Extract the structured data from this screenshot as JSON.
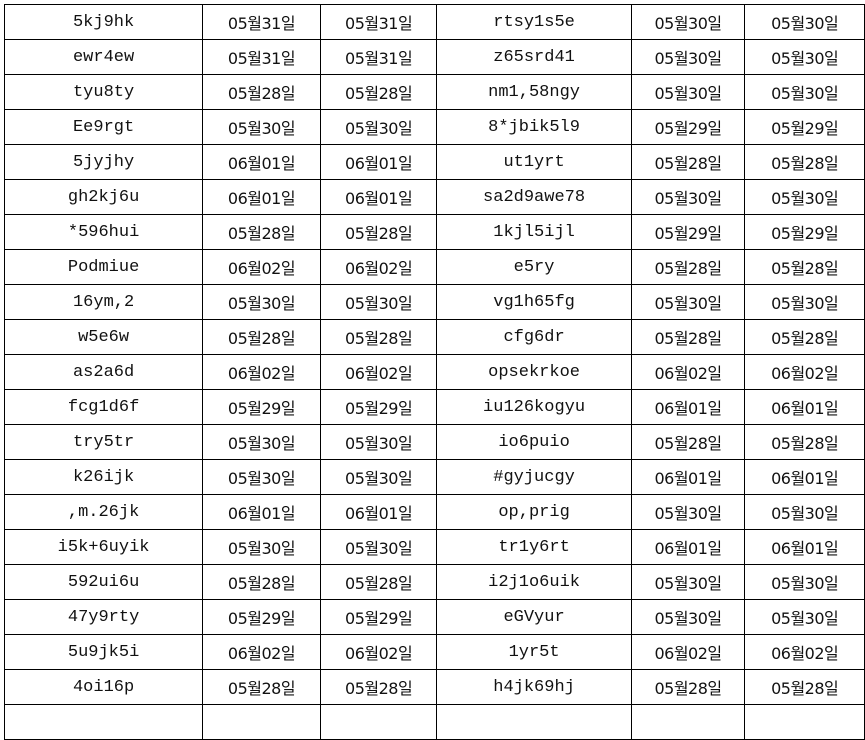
{
  "rows": [
    [
      "5kj9hk",
      "05월31일",
      "05월31일",
      "rtsy1s5e",
      "05월30일",
      "05월30일"
    ],
    [
      "ewr4ew",
      "05월31일",
      "05월31일",
      "z65srd41",
      "05월30일",
      "05월30일"
    ],
    [
      "tyu8ty",
      "05월28일",
      "05월28일",
      "nm1,58ngy",
      "05월30일",
      "05월30일"
    ],
    [
      "Ee9rgt",
      "05월30일",
      "05월30일",
      "8*jbik5l9",
      "05월29일",
      "05월29일"
    ],
    [
      "5jyjhy",
      "06월01일",
      "06월01일",
      "ut1yrt",
      "05월28일",
      "05월28일"
    ],
    [
      "gh2kj6u",
      "06월01일",
      "06월01일",
      "sa2d9awe78",
      "05월30일",
      "05월30일"
    ],
    [
      "*596hui",
      "05월28일",
      "05월28일",
      "1kjl5ijl",
      "05월29일",
      "05월29일"
    ],
    [
      "Podmiue",
      "06월02일",
      "06월02일",
      "e5ry",
      "05월28일",
      "05월28일"
    ],
    [
      "16ym,2",
      "05월30일",
      "05월30일",
      "vg1h65fg",
      "05월30일",
      "05월30일"
    ],
    [
      "w5e6w",
      "05월28일",
      "05월28일",
      "cfg6dr",
      "05월28일",
      "05월28일"
    ],
    [
      "as2a6d",
      "06월02일",
      "06월02일",
      "opsekrkoe",
      "06월02일",
      "06월02일"
    ],
    [
      "fcg1d6f",
      "05월29일",
      "05월29일",
      "iu126kogyu",
      "06월01일",
      "06월01일"
    ],
    [
      "try5tr",
      "05월30일",
      "05월30일",
      "io6puio",
      "05월28일",
      "05월28일"
    ],
    [
      "k26ijk",
      "05월30일",
      "05월30일",
      "#gyjucgy",
      "06월01일",
      "06월01일"
    ],
    [
      ",m.26jk",
      "06월01일",
      "06월01일",
      "op,prig",
      "05월30일",
      "05월30일"
    ],
    [
      "i5k+6uyik",
      "05월30일",
      "05월30일",
      "tr1y6rt",
      "06월01일",
      "06월01일"
    ],
    [
      "592ui6u",
      "05월28일",
      "05월28일",
      "i2j1o6uik",
      "05월30일",
      "05월30일"
    ],
    [
      "47y9rty",
      "05월29일",
      "05월29일",
      "eGVyur",
      "05월30일",
      "05월30일"
    ],
    [
      "5u9jk5i",
      "06월02일",
      "06월02일",
      "1yr5t",
      "06월02일",
      "06월02일"
    ],
    [
      "4oi16p",
      "05월28일",
      "05월28일",
      "h4jk69hj",
      "05월28일",
      "05월28일"
    ],
    [
      "",
      "",
      "",
      "",
      "",
      ""
    ]
  ]
}
